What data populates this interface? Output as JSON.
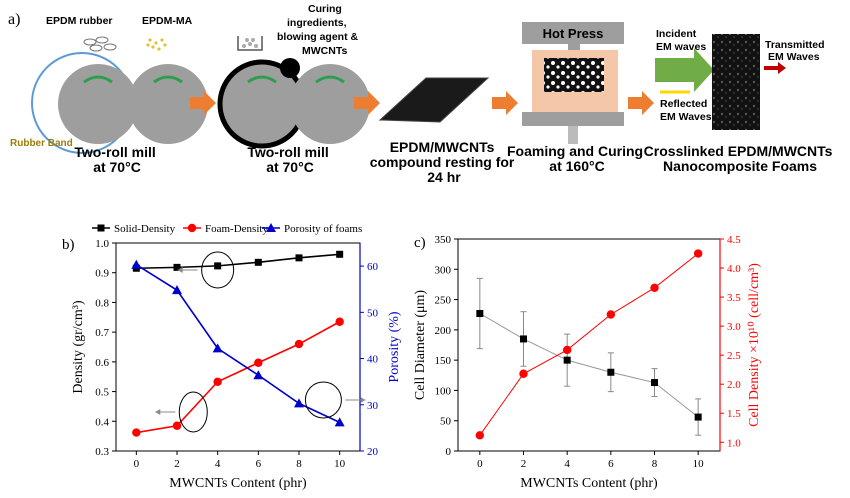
{
  "panel_a": {
    "tag": "a)",
    "epdm_rubber": "EPDM rubber",
    "epdm_ma": "EPDM-MA",
    "rubber_band": "Rubber Band",
    "curing_lines": [
      "Curing",
      "ingredients,",
      "blowing agent &",
      "MWCNTs"
    ],
    "hot_press": "Hot Press",
    "incident_lines": [
      "Incident",
      "EM waves"
    ],
    "transmitted_lines": [
      "Transmitted",
      "EM Waves"
    ],
    "reflected_lines": [
      "Reflected",
      "EM Waves"
    ],
    "steps": [
      {
        "lines": [
          "Two-roll mill",
          "at 70°C"
        ]
      },
      {
        "lines": [
          "Two-roll mill",
          "at 70°C"
        ]
      },
      {
        "lines": [
          "EPDM/MWCNTs",
          "compound resting for",
          "24 hr"
        ]
      },
      {
        "lines": [
          "Foaming and Curing",
          "at 160°C"
        ]
      },
      {
        "lines": [
          "Crosslinked EPDM/MWCNTs",
          "Nanocomposite Foams"
        ]
      }
    ],
    "colors": {
      "roll": "#9e9e9e",
      "arrow": "#ed7d31",
      "press": "#9e9e9e",
      "press_inner": "#f4c7a8",
      "incident": "#70ad47",
      "reflected": "#ffd700",
      "transmitted": "#c00000",
      "band": "#5b9bd5",
      "label_gold": "#9a7d0a"
    }
  },
  "chart_data": [
    {
      "panel": "b)",
      "type": "line",
      "x": [
        0,
        2,
        4,
        6,
        8,
        10
      ],
      "xlabel": "MWCNTs Content (phr)",
      "xlim": [
        -1,
        11
      ],
      "xticks": [
        "0",
        "2",
        "4",
        "6",
        "8",
        "10"
      ],
      "ylabel": "Density (gr/cm³)",
      "ylim": [
        0.3,
        1.0
      ],
      "yticks": [
        "0.3",
        "0.4",
        "0.5",
        "0.6",
        "0.7",
        "0.8",
        "0.9",
        "1.0"
      ],
      "y2label": "Porosity (%)",
      "y2lim": [
        20,
        65
      ],
      "y2ticks": [
        "20",
        "30",
        "40",
        "50",
        "60"
      ],
      "legend_position": "top",
      "series": [
        {
          "name": "Solid-Density",
          "axis": "left",
          "color": "#000000",
          "marker": "square",
          "values": [
            0.915,
            0.918,
            0.923,
            0.935,
            0.95,
            0.962
          ]
        },
        {
          "name": "Foam-Density",
          "axis": "left",
          "color": "#ff0000",
          "marker": "circle",
          "values": [
            0.362,
            0.385,
            0.533,
            0.597,
            0.66,
            0.735
          ]
        },
        {
          "name": "Porosity of foams",
          "axis": "right",
          "color": "#0000cc",
          "marker": "triangle",
          "values": [
            60.3,
            54.8,
            42.2,
            36.4,
            30.3,
            26.2
          ]
        }
      ]
    },
    {
      "panel": "c)",
      "type": "line",
      "x": [
        0,
        2,
        4,
        6,
        8,
        10
      ],
      "xlabel": "MWCNTs Content (phr)",
      "xlim": [
        -1,
        11
      ],
      "xticks": [
        "0",
        "2",
        "4",
        "6",
        "8",
        "10"
      ],
      "ylabel": "Cell Diameter (μm)",
      "ylim": [
        0,
        350
      ],
      "yticks": [
        "0",
        "50",
        "100",
        "150",
        "200",
        "250",
        "300",
        "350"
      ],
      "y2label": "Cell Density ×10¹⁰ (cell/cm³)",
      "y2lim": [
        0.85,
        4.5
      ],
      "y2ticks": [
        "1.0",
        "1.5",
        "2.0",
        "2.5",
        "3.0",
        "3.5",
        "4.0",
        "4.5"
      ],
      "series": [
        {
          "name": "Cell Diameter",
          "axis": "left",
          "color": "#000000",
          "marker": "square",
          "values": [
            227,
            185,
            150,
            130,
            113,
            56
          ],
          "errors": [
            58,
            45,
            43,
            32,
            23,
            30
          ]
        },
        {
          "name": "Cell Density",
          "axis": "right",
          "color": "#ff0000",
          "marker": "circle",
          "values": [
            1.12,
            2.18,
            2.59,
            3.2,
            3.66,
            4.25
          ]
        }
      ]
    }
  ]
}
